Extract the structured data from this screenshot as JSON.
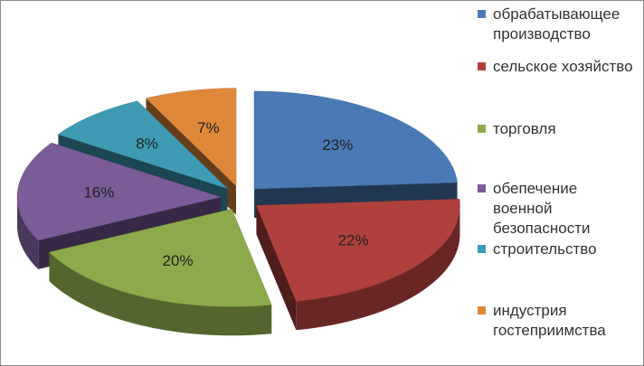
{
  "chart_data": {
    "type": "pie",
    "categories": [
      "обрабатывающее производство",
      "сельское хозяйство",
      "торговля",
      "обепечение военной безопасности",
      "строительство",
      "индустрия гостеприимства"
    ],
    "values": [
      23,
      22,
      20,
      16,
      8,
      7
    ],
    "value_labels": [
      "23%",
      "22%",
      "20%",
      "16%",
      "8%",
      "7%"
    ],
    "colors": [
      "#4a7ab5",
      "#b0403d",
      "#8caa4b",
      "#7a5c99",
      "#3e9bb3",
      "#e0883a"
    ],
    "legend": "right"
  }
}
